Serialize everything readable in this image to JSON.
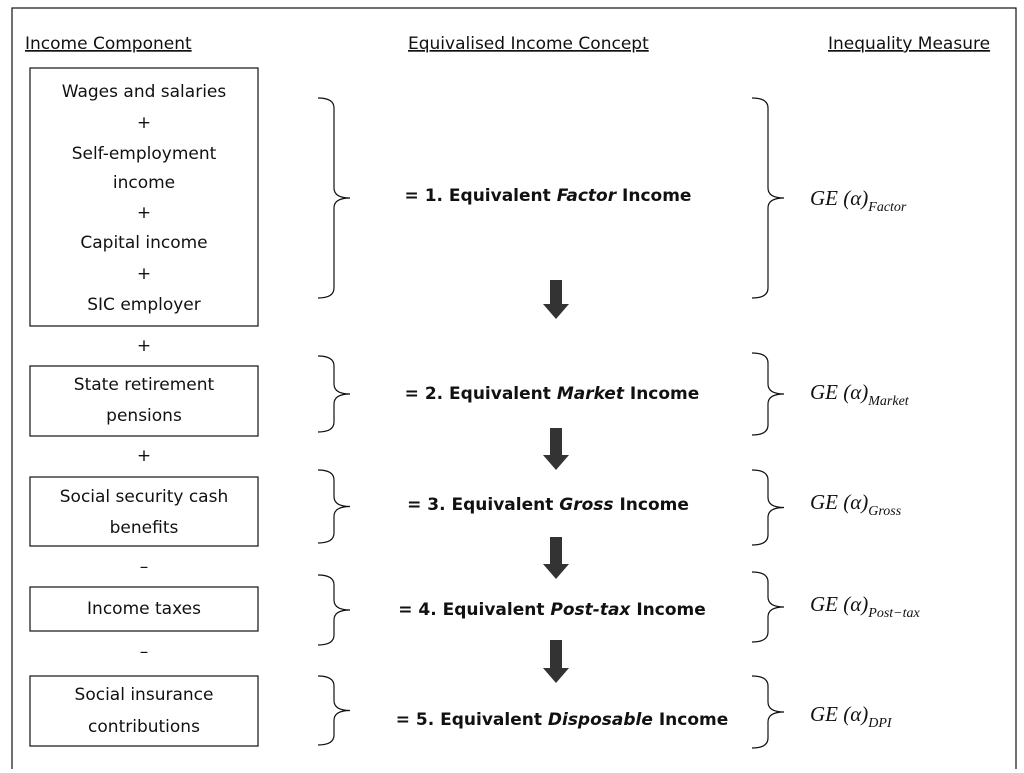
{
  "headers": [
    "Income Component",
    "Equivalised Income Concept",
    "Inequality Measure"
  ],
  "components": [
    {
      "lines": [
        "Wages and salaries",
        "+",
        "Self-employment",
        "income",
        "+",
        "Capital income",
        "+",
        "SIC employer"
      ]
    },
    {
      "lines": [
        "State retirement",
        "pensions"
      ]
    },
    {
      "lines": [
        "Social security cash",
        "benefits"
      ]
    },
    {
      "lines": [
        "Income taxes"
      ]
    },
    {
      "lines": [
        "Social insurance",
        "contributions"
      ]
    }
  ],
  "operators": [
    "+",
    "+",
    "–",
    "–"
  ],
  "concepts": [
    {
      "prefix": "= 1. Equivalent",
      "term": "Factor",
      "suffix": "Income"
    },
    {
      "prefix": "= 2. Equivalent",
      "term": "Market",
      "suffix": "Income"
    },
    {
      "prefix": "= 3. Equivalent",
      "term": "Gross",
      "suffix": "Income"
    },
    {
      "prefix": "= 4. Equivalent",
      "term": "Post-tax",
      "suffix": "Income"
    },
    {
      "prefix": "= 5. Equivalent",
      "term": "Disposable",
      "suffix": "Income"
    }
  ],
  "measures": [
    {
      "main": "GE (α)",
      "sub": "Factor"
    },
    {
      "main": "GE (α)",
      "sub": "Market"
    },
    {
      "main": "GE (α)",
      "sub": "Gross"
    },
    {
      "main": "GE (α)",
      "sub": "Post−tax"
    },
    {
      "main": "GE (α)",
      "sub": "DPI"
    }
  ]
}
